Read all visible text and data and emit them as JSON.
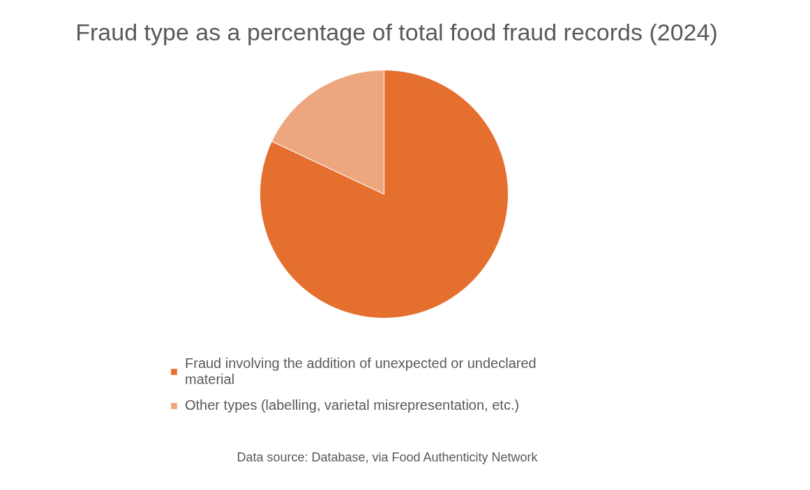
{
  "chart_data": {
    "type": "pie",
    "title": "Fraud type as a percentage of total food fraud records (2024)",
    "categories": [
      "Fraud involving the addition of unexpected or undeclared material",
      "Other types (labelling, varietal misrepresentation, etc.)"
    ],
    "values": [
      82,
      18
    ],
    "colors": [
      "#e46f2f",
      "#eea67e"
    ],
    "legend": "bottom",
    "annotations": [
      "Data source: Database, via Food Authenticity Network"
    ]
  }
}
